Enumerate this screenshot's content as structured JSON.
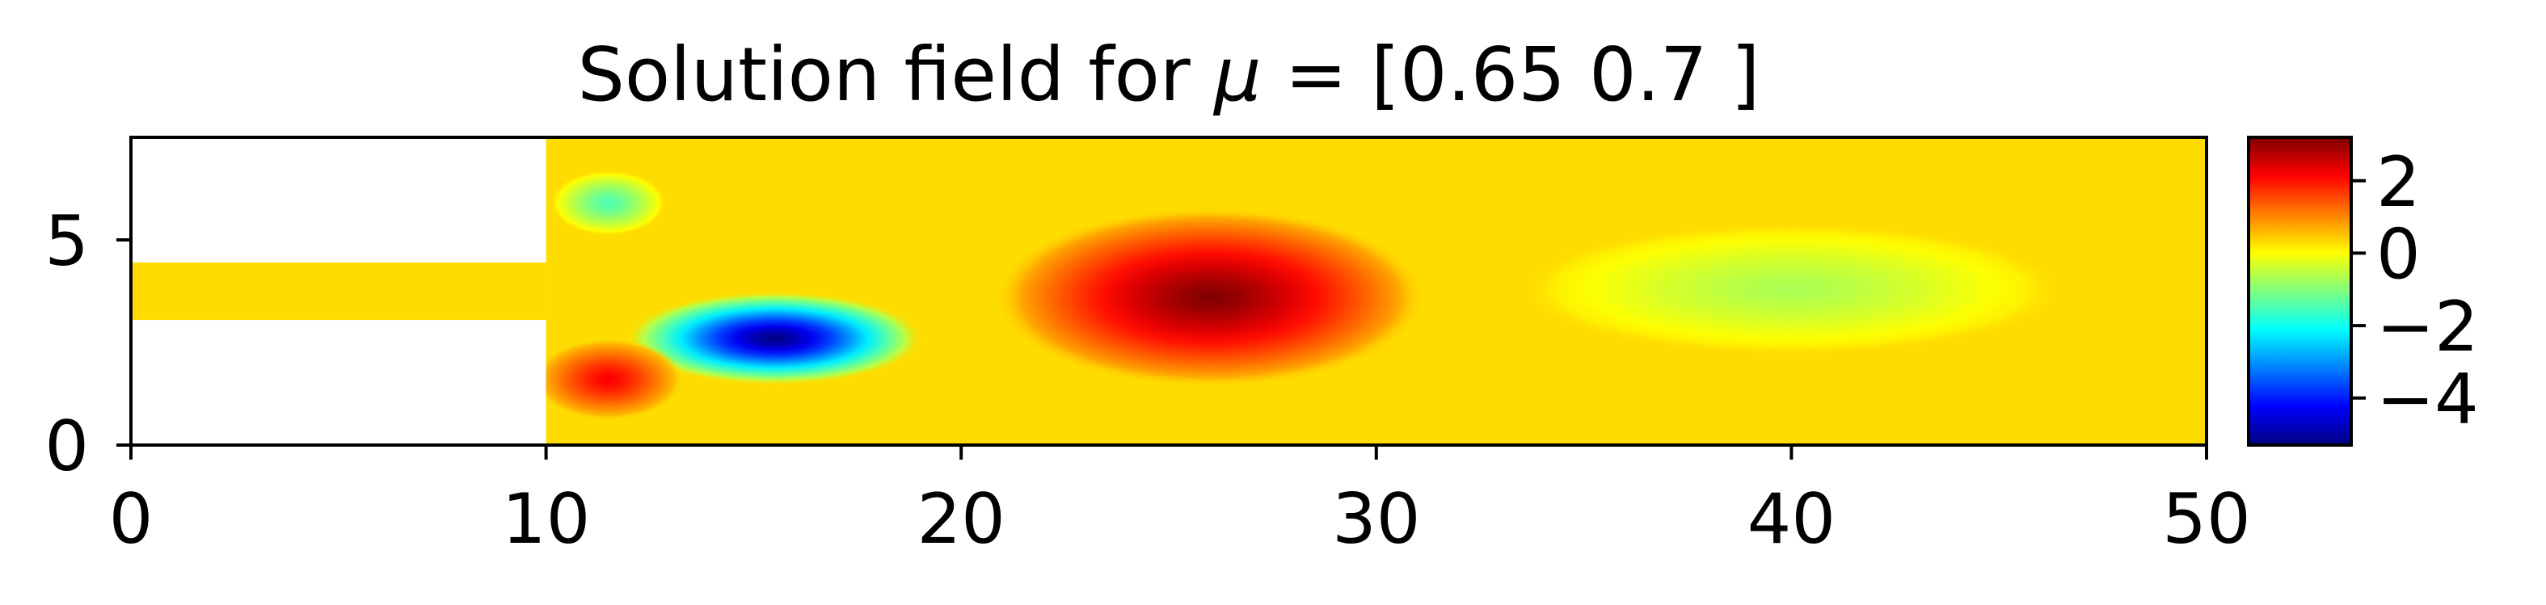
{
  "chart_data": {
    "type": "heatmap",
    "title": "Solution field for μ = [0.65 0.7 ]",
    "title_prefix": "Solution field for ",
    "title_symbol": "μ",
    "title_suffix": " = [0.65 0.7 ]",
    "xlabel": "",
    "ylabel": "",
    "xlim": [
      0,
      50
    ],
    "ylim": [
      0,
      7.5
    ],
    "x_ticks": [
      0,
      10,
      20,
      30,
      40,
      50
    ],
    "x_tick_labels": [
      "0",
      "10",
      "20",
      "30",
      "40",
      "50"
    ],
    "y_ticks": [
      0,
      5
    ],
    "y_tick_labels": [
      "0",
      "5"
    ],
    "grid": false,
    "colormap": "jet",
    "colorbar": {
      "vmin": -5.3,
      "vmax": 3.2,
      "ticks": [
        2,
        0,
        -2,
        -4
      ],
      "tick_labels": [
        "2",
        "0",
        "−2",
        "−4"
      ],
      "stops": [
        "#00007f",
        "#0000ff",
        "#007fff",
        "#00ffff",
        "#7fff7f",
        "#ffff00",
        "#ff7f00",
        "#ff0000",
        "#7f0000"
      ]
    },
    "domain": {
      "inlet_channel": {
        "x": [
          0,
          10
        ],
        "y": [
          3.05,
          4.45
        ]
      },
      "main_channel": {
        "x": [
          10,
          50
        ],
        "y": [
          0,
          7.5
        ]
      },
      "empty_color": "#ffffff"
    },
    "background_value": 0.3,
    "features": [
      {
        "name": "negative vortex",
        "cx": 15.5,
        "cy": 2.6,
        "rx": 3.6,
        "ry": 1.15,
        "value": -5.3
      },
      {
        "name": "positive vortex near step",
        "cx": 11.5,
        "cy": 1.6,
        "rx": 1.8,
        "ry": 1.0,
        "value": 2.2
      },
      {
        "name": "small negative region top",
        "cx": 11.5,
        "cy": 5.9,
        "rx": 1.4,
        "ry": 0.8,
        "value": -1.5
      },
      {
        "name": "positive vortex center",
        "cx": 26.0,
        "cy": 3.6,
        "rx": 5.2,
        "ry": 2.2,
        "value": 3.2
      },
      {
        "name": "weak negative wake",
        "cx": 40.0,
        "cy": 3.8,
        "rx": 6.5,
        "ry": 1.6,
        "value": -0.7
      }
    ]
  }
}
